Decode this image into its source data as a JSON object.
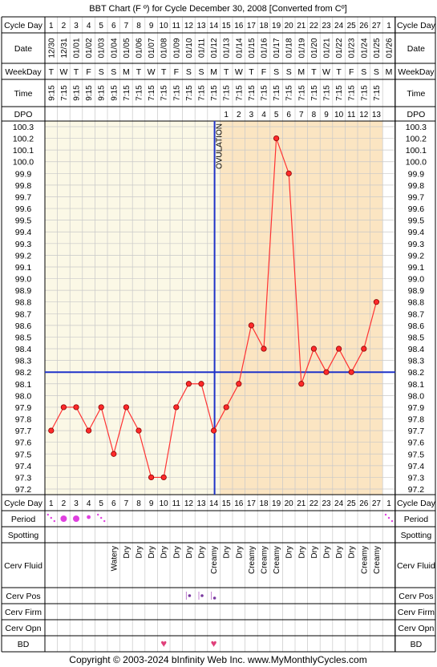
{
  "title": "BBT Chart (F º) for Cycle December 30, 2008  [Converted from Cº]",
  "copyright": "Copyright © 2003-2024 bInfinity Web Inc.    www.MyMonthlyCycles.com",
  "row_labels": {
    "cycle_day": "Cycle Day",
    "date": "Date",
    "weekday": "WeekDay",
    "time": "Time",
    "dpo": "DPO",
    "period": "Period",
    "spotting": "Spotting",
    "cerv_fluid": "Cerv Fluid",
    "cerv_pos": "Cerv Pos",
    "cerv_firm": "Cerv Firm",
    "cerv_opn": "Cerv Opn",
    "bd": "BD"
  },
  "ovulation_label": "OVULATION",
  "colors": {
    "pre_ovulation_bg": "#fbf8e6",
    "post_ovulation_bg": "#fbe5c2",
    "grid": "#c8c8c8",
    "line": "#ff3333",
    "point_fill": "#ff2a2a",
    "ovulation_line": "#1f33c9",
    "coverline": "#1f33c9",
    "period": "#e040e0",
    "bd_heart": "#e0407a",
    "header_bg": "#ffffff"
  },
  "chart_data": {
    "type": "line",
    "title": "BBT Chart (F º) for Cycle December 30, 2008  [Converted from Cº]",
    "cycle_days": [
      "1",
      "2",
      "3",
      "4",
      "5",
      "6",
      "7",
      "8",
      "9",
      "10",
      "11",
      "12",
      "13",
      "14",
      "15",
      "16",
      "17",
      "18",
      "19",
      "20",
      "21",
      "22",
      "23",
      "24",
      "25",
      "26",
      "27",
      "1"
    ],
    "dates": [
      "12/30",
      "12/31",
      "01/01",
      "01/02",
      "01/03",
      "01/04",
      "01/05",
      "01/06",
      "01/07",
      "01/08",
      "01/09",
      "01/10",
      "01/11",
      "01/12",
      "01/13",
      "01/14",
      "01/15",
      "01/16",
      "01/17",
      "01/18",
      "01/19",
      "01/20",
      "01/21",
      "01/22",
      "01/23",
      "01/24",
      "01/25",
      "01/26"
    ],
    "weekdays": [
      "T",
      "W",
      "T",
      "F",
      "S",
      "S",
      "M",
      "T",
      "W",
      "T",
      "F",
      "S",
      "S",
      "M",
      "T",
      "W",
      "T",
      "F",
      "S",
      "S",
      "M",
      "T",
      "W",
      "T",
      "F",
      "S",
      "S",
      "M"
    ],
    "times": [
      "9:15",
      "7:15",
      "9:15",
      "9:15",
      "9:15",
      "9:15",
      "7:15",
      "7:15",
      "7:15",
      "7:15",
      "7:15",
      "7:15",
      "7:15",
      "7:15",
      "7:15",
      "7:15",
      "7:15",
      "7:15",
      "7:15",
      "7:15",
      "7:15",
      "7:15",
      "7:15",
      "7:15",
      "7:15",
      "7:15",
      "7:15",
      ""
    ],
    "dpo": [
      "",
      "",
      "",
      "",
      "",
      "",
      "",
      "",
      "",
      "",
      "",
      "",
      "",
      "",
      "1",
      "2",
      "3",
      "4",
      "5",
      "6",
      "7",
      "8",
      "9",
      "10",
      "11",
      "12",
      "13",
      ""
    ],
    "temperatures": [
      97.7,
      97.9,
      97.9,
      97.7,
      97.9,
      97.5,
      97.9,
      97.7,
      97.3,
      97.3,
      97.9,
      98.1,
      98.1,
      97.7,
      97.9,
      98.1,
      98.6,
      98.4,
      100.2,
      99.9,
      98.1,
      98.4,
      98.2,
      98.4,
      98.2,
      98.4,
      98.8,
      null
    ],
    "y_ticks": [
      "100.3",
      "100.2",
      "100.1",
      "100.0",
      "99.9",
      "99.8",
      "99.7",
      "99.6",
      "99.5",
      "99.4",
      "99.3",
      "99.2",
      "99.1",
      "99.0",
      "98.9",
      "98.8",
      "98.7",
      "98.6",
      "98.5",
      "98.4",
      "98.3",
      "98.2",
      "98.1",
      "98.0",
      "97.9",
      "97.8",
      "97.7",
      "97.6",
      "97.5",
      "97.4",
      "97.3",
      "97.2"
    ],
    "ylim": [
      97.2,
      100.3
    ],
    "coverline": 98.2,
    "ovulation_day_index": 13,
    "period": [
      "light",
      "heavy",
      "heavy",
      "medium",
      "light",
      "",
      "",
      "",
      "",
      "",
      "",
      "",
      "",
      "",
      "",
      "",
      "",
      "",
      "",
      "",
      "",
      "",
      "",
      "",
      "",
      "",
      "",
      "light"
    ],
    "spotting": [
      "",
      "",
      "",
      "",
      "",
      "",
      "",
      "",
      "",
      "",
      "",
      "",
      "",
      "",
      "",
      "",
      "",
      "",
      "",
      "",
      "",
      "",
      "",
      "",
      "",
      "",
      "",
      ""
    ],
    "cerv_fluid": [
      "",
      "",
      "",
      "",
      "",
      "Watery",
      "Dry",
      "Dry",
      "Dry",
      "Dry",
      "Dry",
      "Dry",
      "Dry",
      "Creamy",
      "Dry",
      "Dry",
      "Creamy",
      "Creamy",
      "Creamy",
      "Dry",
      "Dry",
      "Dry",
      "Dry",
      "Dry",
      "Dry",
      "Creamy",
      "Creamy",
      ""
    ],
    "cerv_pos": [
      "",
      "",
      "",
      "",
      "",
      "",
      "",
      "",
      "",
      "",
      "",
      "med",
      "med",
      "low",
      "",
      "",
      "",
      "",
      "",
      "",
      "",
      "",
      "",
      "",
      "",
      "",
      "",
      ""
    ],
    "cerv_firm": [
      "",
      "",
      "",
      "",
      "",
      "",
      "",
      "",
      "",
      "",
      "",
      "",
      "",
      "",
      "",
      "",
      "",
      "",
      "",
      "",
      "",
      "",
      "",
      "",
      "",
      "",
      "",
      ""
    ],
    "cerv_opn": [
      "",
      "",
      "",
      "",
      "",
      "",
      "",
      "",
      "",
      "",
      "",
      "",
      "",
      "",
      "",
      "",
      "",
      "",
      "",
      "",
      "",
      "",
      "",
      "",
      "",
      "",
      "",
      ""
    ],
    "bd": [
      false,
      false,
      false,
      false,
      false,
      false,
      false,
      false,
      false,
      true,
      false,
      false,
      false,
      true,
      false,
      false,
      false,
      false,
      false,
      false,
      false,
      false,
      false,
      false,
      false,
      false,
      false,
      false
    ]
  }
}
